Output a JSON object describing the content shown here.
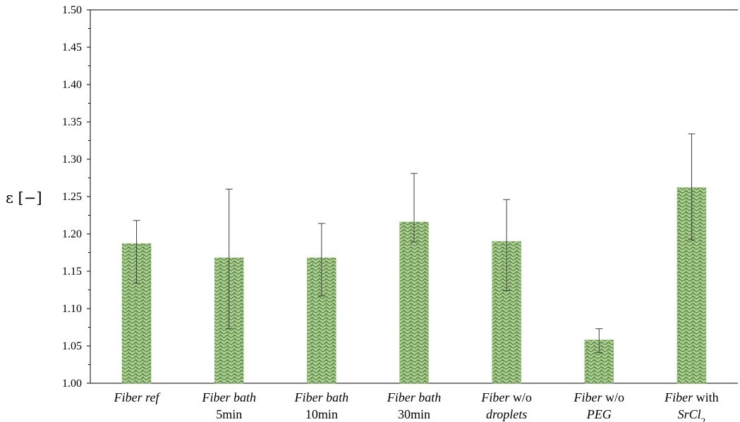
{
  "chart_data": {
    "type": "bar",
    "ylabel": "ε [−]",
    "ylim": [
      1.0,
      1.5
    ],
    "y_ticks": [
      "1.00",
      "1.05",
      "1.10",
      "1.15",
      "1.20",
      "1.25",
      "1.30",
      "1.35",
      "1.40",
      "1.45",
      "1.50"
    ],
    "grid": false,
    "categories": [
      {
        "lines": [
          [
            {
              "t": "Fiber ref",
              "i": true
            }
          ]
        ]
      },
      {
        "lines": [
          [
            {
              "t": "Fiber bath",
              "i": true
            }
          ],
          [
            {
              "t": "5min",
              "i": false
            }
          ]
        ]
      },
      {
        "lines": [
          [
            {
              "t": "Fiber bath",
              "i": true
            }
          ],
          [
            {
              "t": "10min",
              "i": false
            }
          ]
        ]
      },
      {
        "lines": [
          [
            {
              "t": "Fiber bath",
              "i": true
            }
          ],
          [
            {
              "t": "30min",
              "i": false
            }
          ]
        ]
      },
      {
        "lines": [
          [
            {
              "t": "Fiber",
              "i": true
            },
            {
              "t": " w/o",
              "i": false
            }
          ],
          [
            {
              "t": "droplets",
              "i": true
            }
          ]
        ]
      },
      {
        "lines": [
          [
            {
              "t": "Fiber",
              "i": true
            },
            {
              "t": " w/o",
              "i": false
            }
          ],
          [
            {
              "t": "PEG",
              "i": true
            }
          ]
        ]
      },
      {
        "lines": [
          [
            {
              "t": "Fiber",
              "i": true
            },
            {
              "t": " with",
              "i": false
            }
          ],
          [
            {
              "t": "SrCl",
              "i": true
            },
            {
              "t": "2",
              "i": false,
              "sub": true
            }
          ]
        ]
      }
    ],
    "values": [
      1.187,
      1.168,
      1.168,
      1.216,
      1.19,
      1.058,
      1.262
    ],
    "error_low": [
      1.134,
      1.073,
      1.117,
      1.189,
      1.124,
      1.041,
      1.192
    ],
    "error_high": [
      1.218,
      1.26,
      1.214,
      1.281,
      1.246,
      1.073,
      1.334
    ],
    "bar_color": "#a9d18e",
    "bar_pattern_color": "#2e4a1f",
    "error_bar_color": "#404040"
  }
}
